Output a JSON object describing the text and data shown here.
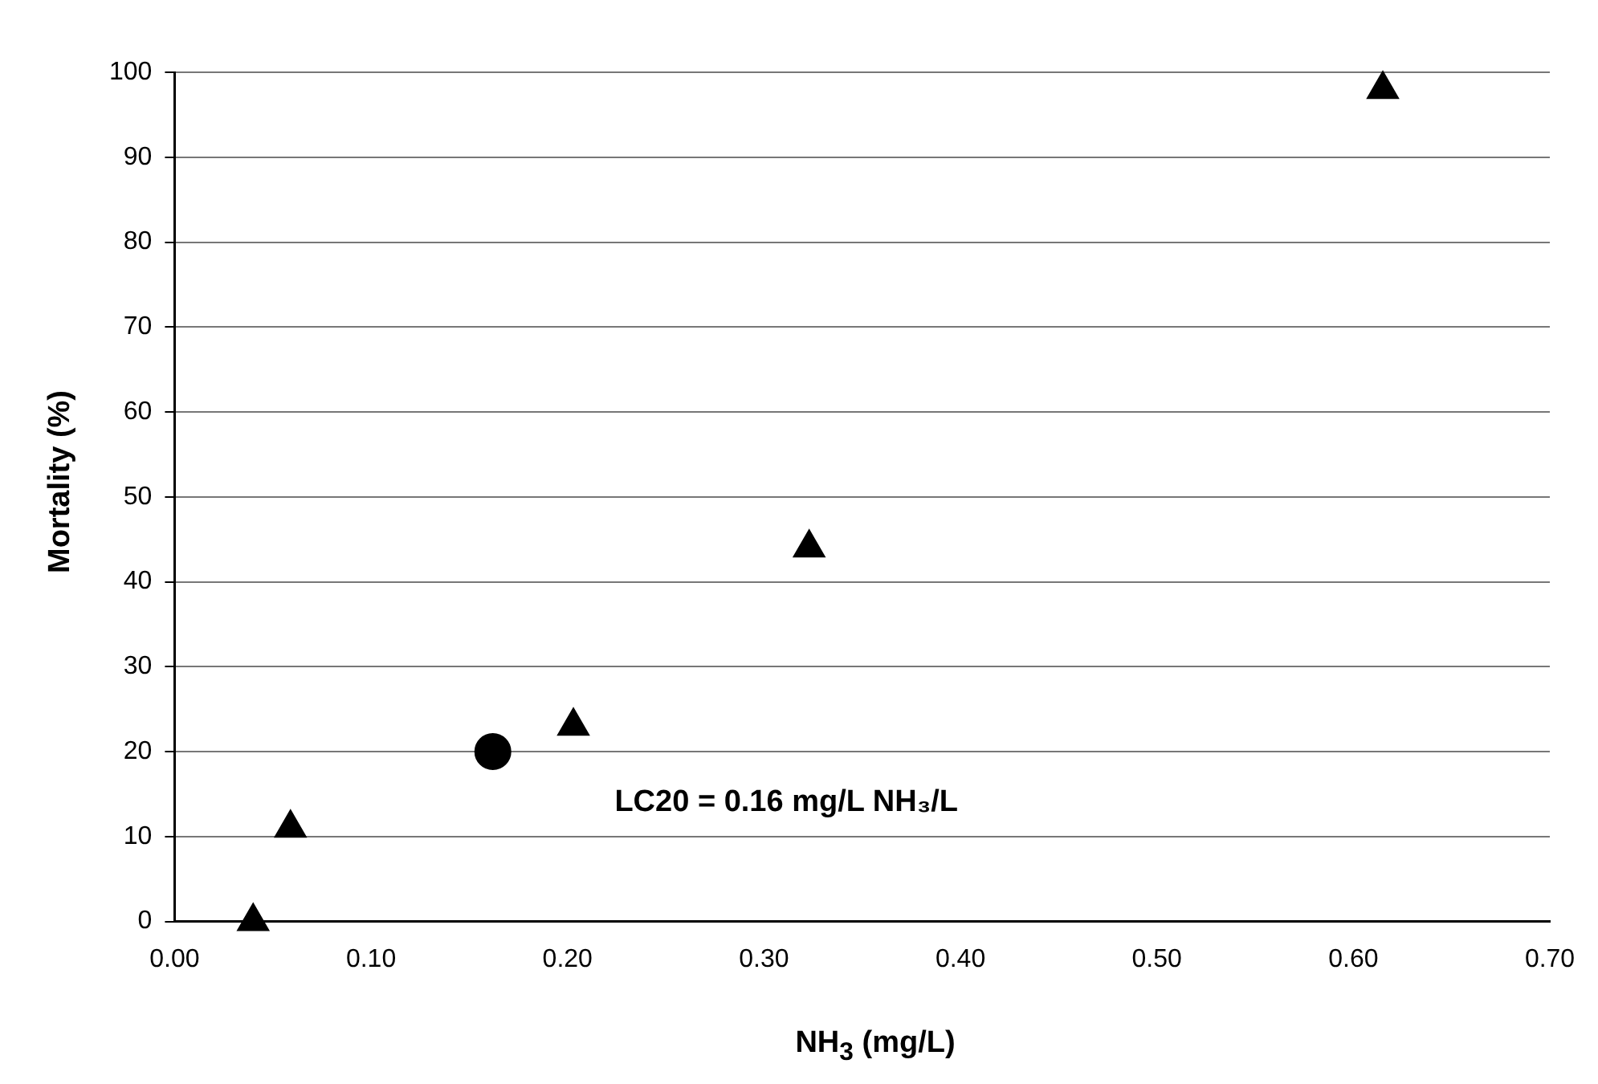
{
  "chart_data": {
    "type": "scatter",
    "xlabel": "NH$_{3}$ (mg/L)",
    "ylabel": "Mortality (%)",
    "xlim": [
      0,
      0.7
    ],
    "xticks": [
      {
        "value": 0,
        "label": "0.00"
      },
      {
        "value": 0.1,
        "label": "0.10"
      },
      {
        "value": 0.2,
        "label": "0.20"
      },
      {
        "value": 0.3,
        "label": "0.30"
      },
      {
        "value": 0.4,
        "label": "0.40"
      },
      {
        "value": 0.5,
        "label": "0.50"
      },
      {
        "value": 0.6,
        "label": "0.60"
      },
      {
        "value": 0.7,
        "label": "0.70"
      }
    ],
    "ylim": [
      0,
      100
    ],
    "yticks": [
      0,
      10,
      20,
      30,
      40,
      50,
      60,
      70,
      80,
      90,
      100
    ],
    "grid": "y",
    "legend": false,
    "series": [
      {
        "color": "#000000",
        "marker": "triangle",
        "x": [
          0.04,
          0.059,
          0.203,
          0.323,
          0.615
        ],
        "values": [
          0,
          11,
          23,
          44,
          98
        ]
      },
      {
        "color": "#000000",
        "marker": "circle",
        "x": [
          0.162
        ],
        "values": [
          20
        ]
      }
    ],
    "annotations": [
      "LC20 = 0.16 mg/L NH₃/L"
    ]
  }
}
